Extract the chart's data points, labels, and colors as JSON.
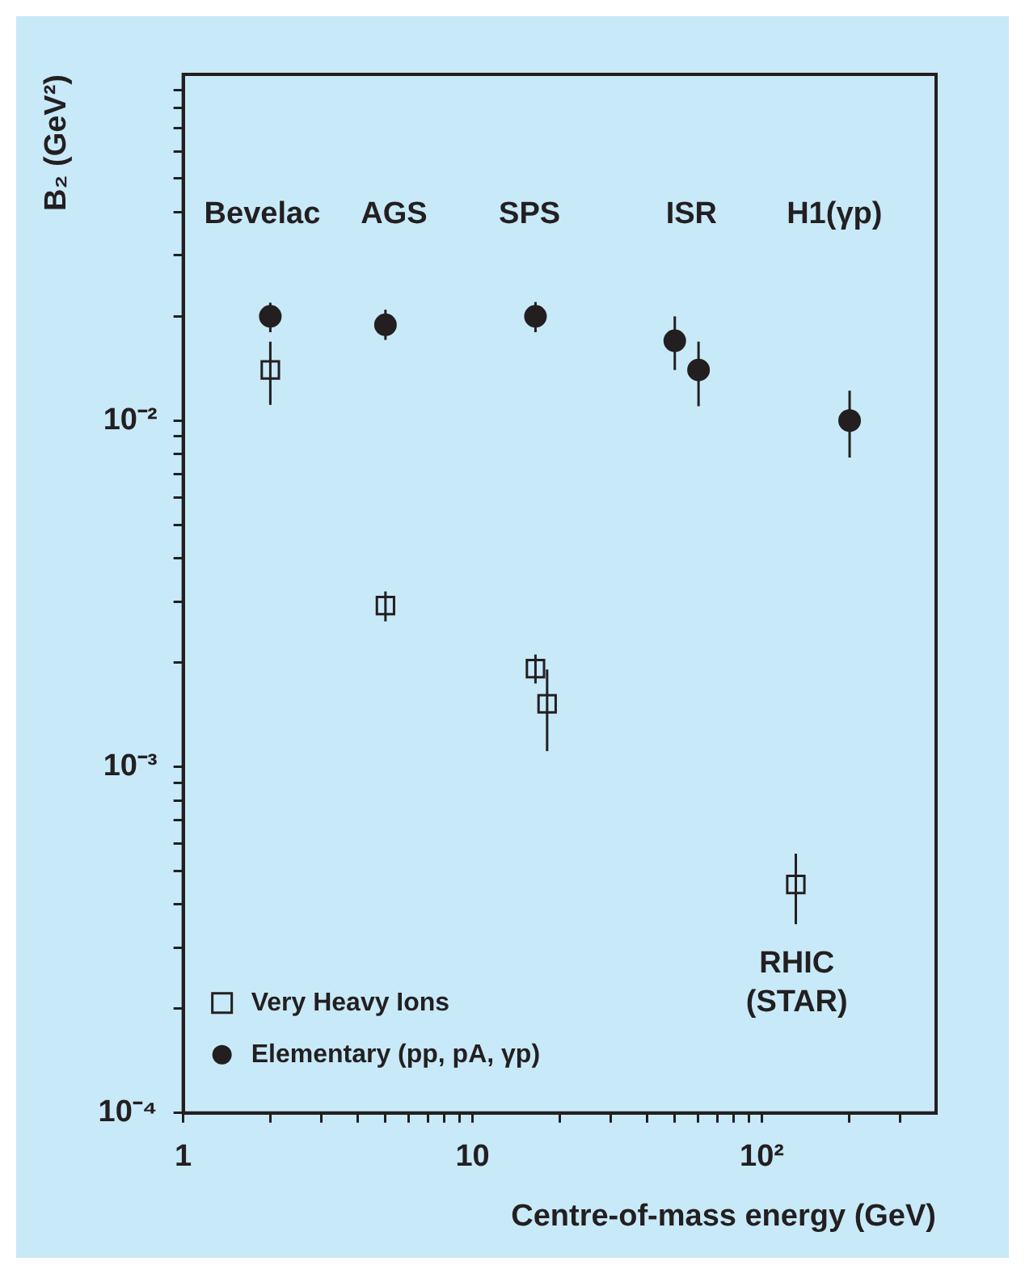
{
  "chart_data": {
    "type": "scatter",
    "xlabel": "Centre-of-mass energy (GeV)",
    "ylabel": "B₂ (GeV²)",
    "log": "xy",
    "grid": false,
    "legend": "bottom left",
    "xlim": [
      1,
      400
    ],
    "ylim": [
      0.0001,
      0.1
    ],
    "xticks": [
      1,
      {
        "value": 2,
        "label": null
      },
      {
        "value": 3,
        "label": null
      },
      {
        "value": 4,
        "label": null
      },
      {
        "value": 5,
        "label": null
      },
      {
        "value": 6,
        "label": null
      },
      {
        "value": 7,
        "label": null
      },
      {
        "value": 8,
        "label": null
      },
      {
        "value": 9,
        "label": null
      },
      10,
      {
        "value": 20,
        "label": null
      },
      {
        "value": 30,
        "label": null
      },
      {
        "value": 40,
        "label": null
      },
      {
        "value": 50,
        "label": null
      },
      {
        "value": 60,
        "label": null
      },
      {
        "value": 70,
        "label": null
      },
      {
        "value": 80,
        "label": null
      },
      {
        "value": 90,
        "label": null
      },
      {
        "value": 100,
        "label": "10²"
      },
      {
        "value": 200,
        "label": null
      },
      {
        "value": 300,
        "label": null
      }
    ],
    "yticks": [
      {
        "value": 0.0001,
        "label": "10⁻⁴"
      },
      {
        "value": 0.0002,
        "label": null
      },
      {
        "value": 0.0003,
        "label": null
      },
      {
        "value": 0.0004,
        "label": null
      },
      {
        "value": 0.0005,
        "label": null
      },
      {
        "value": 0.0006,
        "label": null
      },
      {
        "value": 0.0007,
        "label": null
      },
      {
        "value": 0.0008,
        "label": null
      },
      {
        "value": 0.0009,
        "label": null
      },
      {
        "value": 0.001,
        "label": "10⁻³"
      },
      {
        "value": 0.002,
        "label": null
      },
      {
        "value": 0.003,
        "label": null
      },
      {
        "value": 0.004,
        "label": null
      },
      {
        "value": 0.005,
        "label": null
      },
      {
        "value": 0.006,
        "label": null
      },
      {
        "value": 0.007,
        "label": null
      },
      {
        "value": 0.008,
        "label": null
      },
      {
        "value": 0.009,
        "label": null
      },
      {
        "value": 0.01,
        "label": "10⁻²"
      },
      {
        "value": 0.02,
        "label": null
      },
      {
        "value": 0.03,
        "label": null
      },
      {
        "value": 0.04,
        "label": null
      },
      {
        "value": 0.05,
        "label": null
      },
      {
        "value": 0.06,
        "label": null
      },
      {
        "value": 0.07,
        "label": null
      },
      {
        "value": 0.08,
        "label": null
      },
      {
        "value": 0.09,
        "label": null
      }
    ],
    "series": [
      {
        "name": "Very Heavy Ions",
        "color": "#231f20",
        "marker": "square",
        "x": [
          2.0,
          5.0,
          16.5,
          18.1,
          131
        ],
        "values": [
          0.014,
          0.00292,
          0.00192,
          0.00152,
          0.000457
        ],
        "errors": [
          [
            0.0111,
            0.0169
          ],
          [
            0.00263,
            0.00321
          ],
          [
            0.00174,
            0.00211
          ],
          [
            0.00111,
            0.00191
          ],
          [
            0.000351,
            0.000561
          ]
        ]
      },
      {
        "name": "Elementary (pp, pA, γp)",
        "color": "#231f20",
        "marker": "circle",
        "x": [
          2.0,
          5.0,
          16.5,
          50,
          60.4,
          201
        ],
        "values": [
          0.02,
          0.0189,
          0.02,
          0.017,
          0.014,
          0.01
        ],
        "errors": [
          [
            0.018,
            0.0219
          ],
          [
            0.0171,
            0.0209
          ],
          [
            0.018,
            0.022
          ],
          [
            0.014,
            0.02
          ],
          [
            0.011,
            0.0169
          ],
          [
            0.00782,
            0.0122
          ]
        ]
      }
    ],
    "annotations": [
      "Bevelac",
      "AGS",
      "SPS",
      "ISR",
      "H1(γp)",
      "RHIC\n(STAR)"
    ]
  }
}
